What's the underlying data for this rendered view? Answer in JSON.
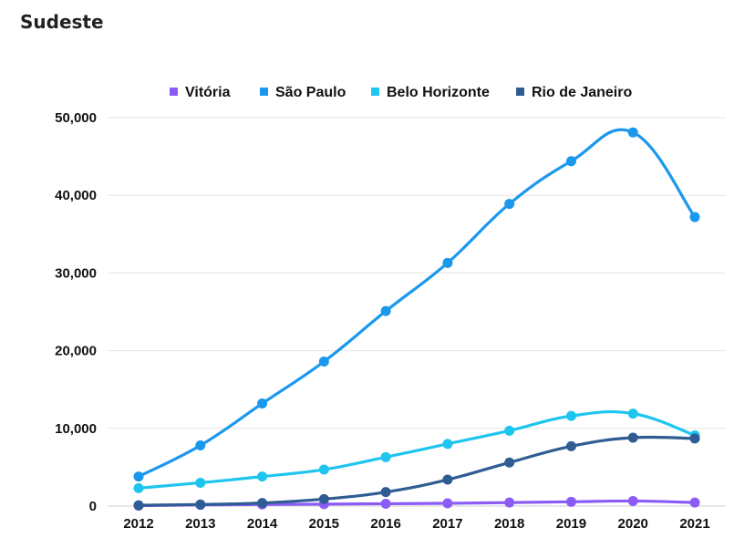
{
  "header": {
    "title": "Sudeste"
  },
  "chart_data": {
    "type": "line",
    "x": [
      "2012",
      "2013",
      "2014",
      "2015",
      "2016",
      "2017",
      "2018",
      "2019",
      "2020",
      "2021"
    ],
    "ylim": [
      0,
      50000
    ],
    "yticks": [
      0,
      10000,
      20000,
      30000,
      40000,
      50000
    ],
    "ytick_labels": [
      "0",
      "10,000",
      "20,000",
      "30,000",
      "40,000",
      "50,000"
    ],
    "grid": true,
    "legend": "top",
    "series": [
      {
        "name": "Vitória",
        "color": "#8a5cf5",
        "values": [
          50,
          150,
          200,
          250,
          300,
          350,
          450,
          550,
          650,
          450
        ]
      },
      {
        "name": "São Paulo",
        "color": "#1a98ee",
        "values": [
          3800,
          7800,
          13200,
          18600,
          25100,
          31300,
          38900,
          44400,
          48100,
          37200
        ]
      },
      {
        "name": "Belo Horizonte",
        "color": "#1ec5ef",
        "values": [
          2300,
          3000,
          3800,
          4700,
          6300,
          8000,
          9700,
          11600,
          11900,
          9100
        ]
      },
      {
        "name": "Rio de Janeiro",
        "color": "#2f5d93",
        "values": [
          100,
          200,
          400,
          900,
          1800,
          3400,
          5600,
          7700,
          8800,
          8700
        ]
      }
    ]
  }
}
